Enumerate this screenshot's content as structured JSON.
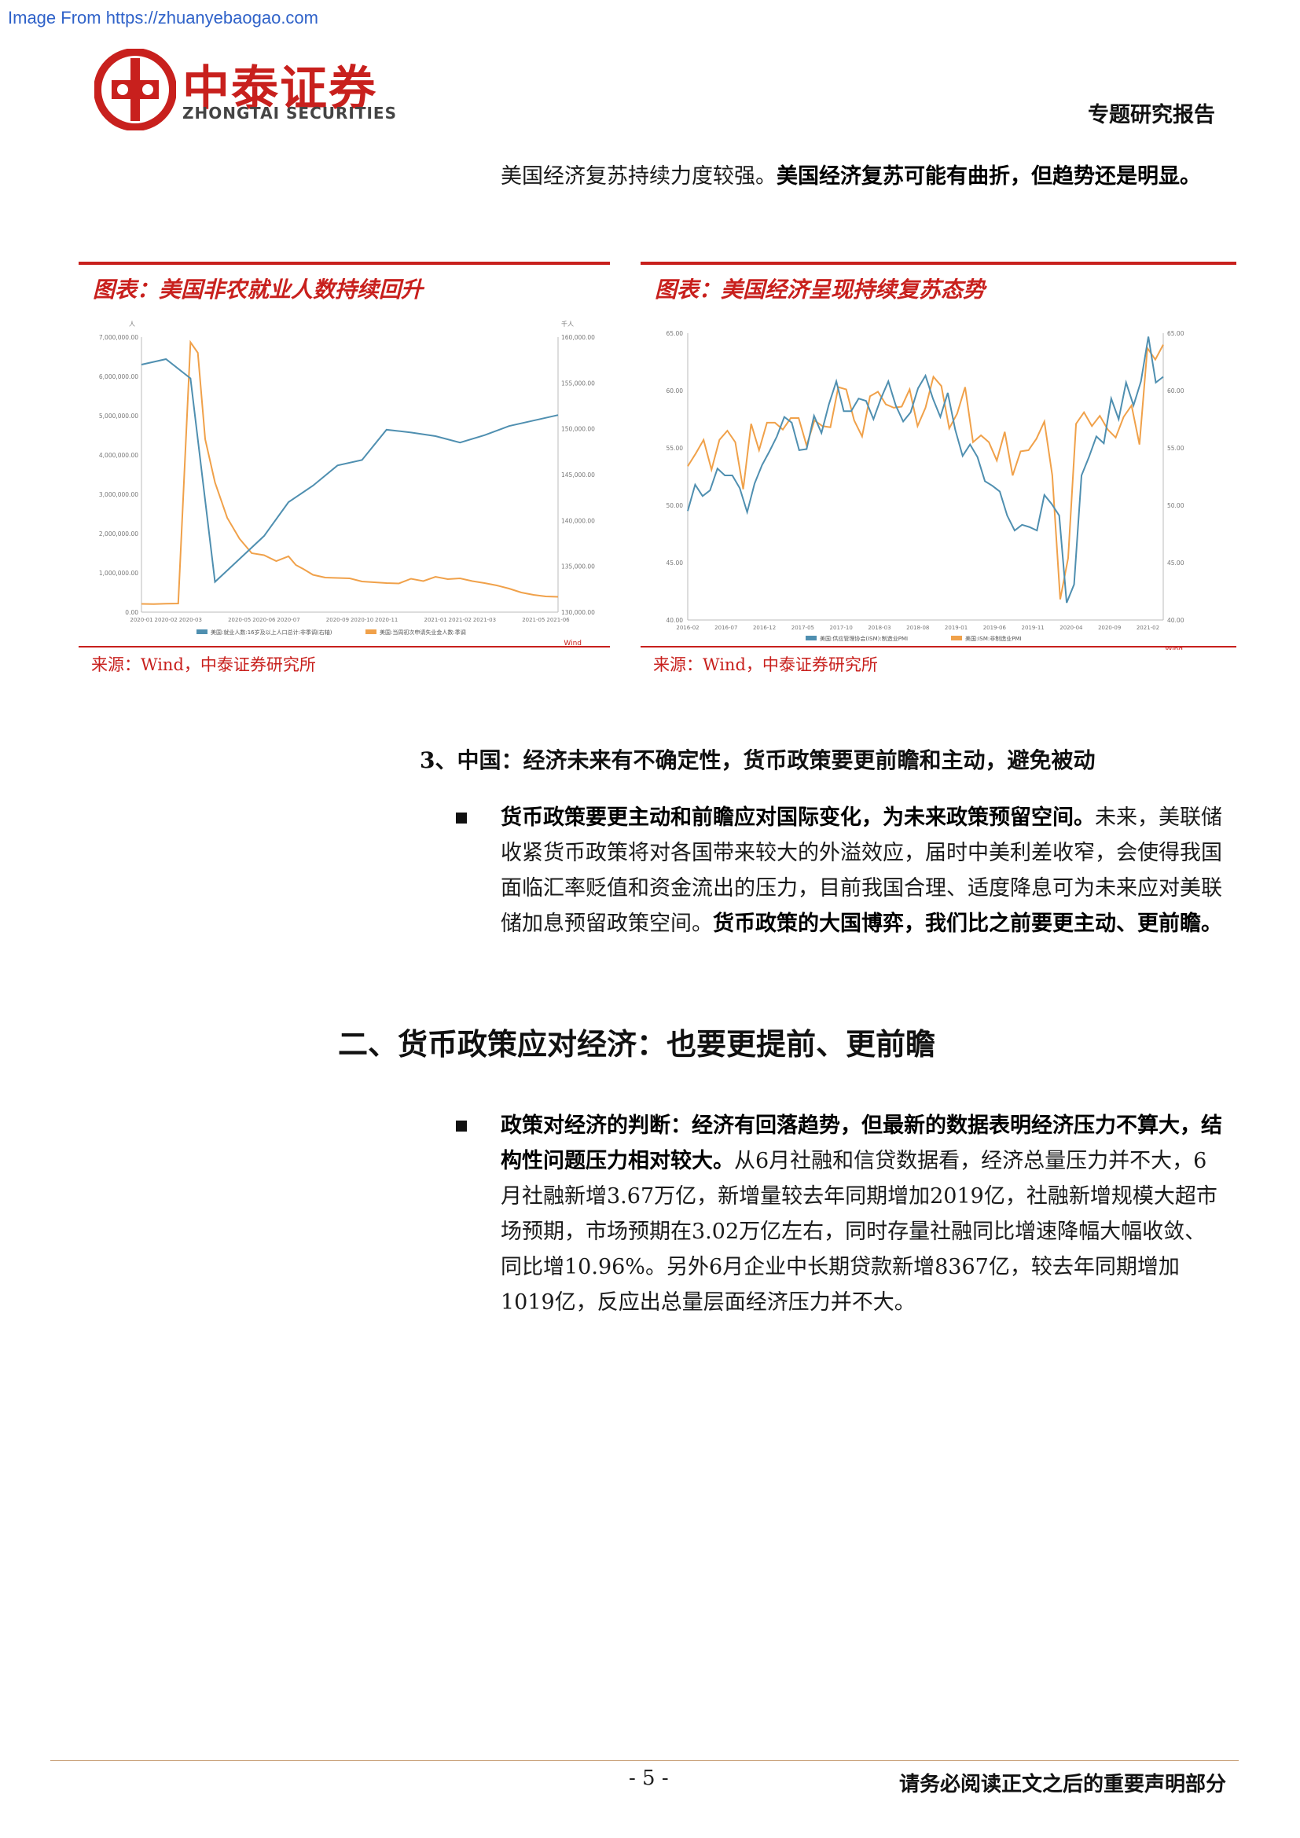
{
  "watermark": "Image From https://zhuanyebaogao.com",
  "header": {
    "logo_cn": "中泰证券",
    "logo_en": "ZHONGTAI SECURITIES",
    "report_type": "专题研究报告"
  },
  "intro": {
    "normal": "美国经济复苏持续力度较强。",
    "bold": "美国经济复苏可能有曲折，但趋势还是明显。"
  },
  "charts": [
    {
      "title": "图表：美国非农就业人数持续回升",
      "source": "来源：Wind，中泰证券研究所",
      "brand": "Wind",
      "left_unit": "人",
      "right_unit": "千人",
      "colors": {
        "series1": "#4f8fb0",
        "series2": "#f0a14a"
      }
    },
    {
      "title": "图表：美国经济呈现持续复苏态势",
      "source": "来源：Wind，中泰证券研究所",
      "brand": "Wind",
      "colors": {
        "series1": "#4f8fb0",
        "series2": "#f0a14a"
      }
    }
  ],
  "chart_data": [
    {
      "type": "line",
      "title": "",
      "x": [
        "2020-01",
        "2020-02",
        "2020-03",
        "2020-04",
        "2020-05",
        "2020-06",
        "2020-07",
        "2020-08",
        "2020-09",
        "2020-10",
        "2020-11",
        "2020-12",
        "2021-01",
        "2021-02",
        "2021-03",
        "2021-04",
        "2021-05",
        "2021-06"
      ],
      "x_ticks": [
        "2020-01",
        "2020-02",
        "2020-03",
        "2020-05",
        "2020-06",
        "2020-07",
        "2020-09",
        "2020-10",
        "2020-11",
        "2021-01",
        "2021-02",
        "2021-03",
        "2021-05",
        "2021-06"
      ],
      "y_left_ticks": [
        "0.00",
        "1,000,000.00",
        "2,000,000.00",
        "3,000,000.00",
        "4,000,000.00",
        "5,000,000.00",
        "6,000,000.00",
        "7,000,000.00"
      ],
      "y_right_ticks": [
        "130,000.00",
        "135,000.00",
        "140,000.00",
        "145,000.00",
        "150,000.00",
        "155,000.00",
        "160,000.00"
      ],
      "ylim_left": [
        0,
        7000000
      ],
      "ylim_right": [
        130000,
        160000
      ],
      "series": [
        {
          "name": "美国:就业人数:16岁及以上人口总计:非季调(右轴)",
          "axis": "right",
          "x": [
            "2020-01",
            "2020-02",
            "2020-03",
            "2020-04",
            "2020-05",
            "2020-06",
            "2020-07",
            "2020-08",
            "2020-09",
            "2020-10",
            "2020-11",
            "2020-12",
            "2021-01",
            "2021-02",
            "2021-03",
            "2021-04",
            "2021-05",
            "2021-06"
          ],
          "values": [
            157000,
            157600,
            155500,
            133300,
            135800,
            138300,
            142000,
            143800,
            146000,
            146600,
            149900,
            149600,
            149200,
            148500,
            149300,
            150300,
            150900,
            151500
          ]
        },
        {
          "name": "美国:当周初次申请失业金人数:季调",
          "axis": "left",
          "x": [
            "2020-01",
            "2020-01.5",
            "2020-02",
            "2020-02.5",
            "2020-03",
            "2020-03.3",
            "2020-03.6",
            "2020-04",
            "2020-04.5",
            "2020-05",
            "2020-05.5",
            "2020-06",
            "2020-06.5",
            "2020-07",
            "2020-07.3",
            "2020-07.6",
            "2020-08",
            "2020-08.5",
            "2020-09",
            "2020-09.5",
            "2020-10",
            "2020-10.5",
            "2020-11",
            "2020-11.5",
            "2020-12",
            "2020-12.5",
            "2021-01",
            "2021-01.5",
            "2021-02",
            "2021-02.5",
            "2021-03",
            "2021-03.5",
            "2021-04",
            "2021-04.5",
            "2021-05",
            "2021-05.5",
            "2021-06"
          ],
          "values": [
            210000,
            205000,
            215000,
            220000,
            6870000,
            6600000,
            4400000,
            3300000,
            2400000,
            1870000,
            1500000,
            1450000,
            1300000,
            1420000,
            1200000,
            1100000,
            950000,
            880000,
            870000,
            860000,
            780000,
            760000,
            740000,
            730000,
            850000,
            790000,
            900000,
            840000,
            860000,
            790000,
            740000,
            680000,
            600000,
            500000,
            440000,
            400000,
            390000
          ]
        }
      ],
      "legend_position": "bottom"
    },
    {
      "type": "line",
      "title": "",
      "x_ticks": [
        "2016-02",
        "2016-07",
        "2016-12",
        "2017-05",
        "2017-10",
        "2018-03",
        "2018-08",
        "2019-01",
        "2019-06",
        "2019-11",
        "2020-04",
        "2020-09",
        "2021-02"
      ],
      "y_ticks": [
        "40.00",
        "45.00",
        "50.00",
        "55.00",
        "60.00",
        "65.00"
      ],
      "ylim": [
        40,
        65
      ],
      "series": [
        {
          "name": "美国:供应管理协会(ISM):制造业PMI",
          "values": [
            49.5,
            51.8,
            50.8,
            51.3,
            53.2,
            52.6,
            52.6,
            51.5,
            49.4,
            51.9,
            53.5,
            54.7,
            56.0,
            57.7,
            57.2,
            54.8,
            54.9,
            57.8,
            56.3,
            58.8,
            60.8,
            58.2,
            58.2,
            59.3,
            59.1,
            57.5,
            59.3,
            60.8,
            58.7,
            57.3,
            58.1,
            60.2,
            61.3,
            59.3,
            57.7,
            59.8,
            56.6,
            54.3,
            55.3,
            54.2,
            52.1,
            51.7,
            51.2,
            49.1,
            47.8,
            48.3,
            48.1,
            47.8,
            50.9,
            50.1,
            49.1,
            41.5,
            43.1,
            52.6,
            54.2,
            56.0,
            55.4,
            59.3,
            57.5,
            60.7,
            58.7,
            60.8,
            64.7,
            60.7,
            61.2
          ]
        },
        {
          "name": "美国:ISM:非制造业PMI",
          "values": [
            53.4,
            54.5,
            55.7,
            53.1,
            55.7,
            56.5,
            55.5,
            51.4,
            57.1,
            54.8,
            57.2,
            57.2,
            56.6,
            57.6,
            57.6,
            55.2,
            57.4,
            56.9,
            56.8,
            60.3,
            60.1,
            57.4,
            56.0,
            59.5,
            59.9,
            58.8,
            58.5,
            58.6,
            60.1,
            56.9,
            58.5,
            61.2,
            60.4,
            56.7,
            58.0,
            60.3,
            55.5,
            56.1,
            55.5,
            53.9,
            56.4,
            52.6,
            54.7,
            54.8,
            55.8,
            57.3,
            52.6,
            41.8,
            45.4,
            57.1,
            58.1,
            56.9,
            57.8,
            56.6,
            55.9,
            57.7,
            58.7,
            55.3,
            63.7,
            62.7,
            64.0
          ]
        }
      ],
      "legend_position": "bottom"
    }
  ],
  "section3": {
    "heading": "3、中国：经济未来有不确定性，货币政策要更前瞻和主动，避免被动",
    "bullet_bold": "货币政策要更主动和前瞻应对国际变化，为未来政策预留空间。",
    "bullet_text": "未来，美联储收紧货币政策将对各国带来较大的外溢效应，届时中美利差收窄，会使得我国面临汇率贬值和资金流出的压力，目前我国合理、适度降息可为未来应对美联储加息预留政策空间。",
    "bullet_bold2": "货币政策的大国博弈，我们比之前要更主动、更前瞻。"
  },
  "section2": {
    "heading": "二、货币政策应对经济：也要更提前、更前瞻",
    "bullet_bold": "政策对经济的判断：经济有回落趋势，但最新的数据表明经济压力不算大，结构性问题压力相对较大。",
    "bullet_text": "从6月社融和信贷数据看，经济总量压力并不大，6月社融新增3.67万亿，新增量较去年同期增加2019亿，社融新增规模大超市场预期，市场预期在3.02万亿左右，同时存量社融同比增速降幅大幅收敛、同比增10.96%。另外6月企业中长期贷款新增8367亿，较去年同期增加1019亿，反应出总量层面经济压力并不大。"
  },
  "footer": {
    "page": "- 5 -",
    "disclaimer": "请务必阅读正文之后的重要声明部分"
  }
}
